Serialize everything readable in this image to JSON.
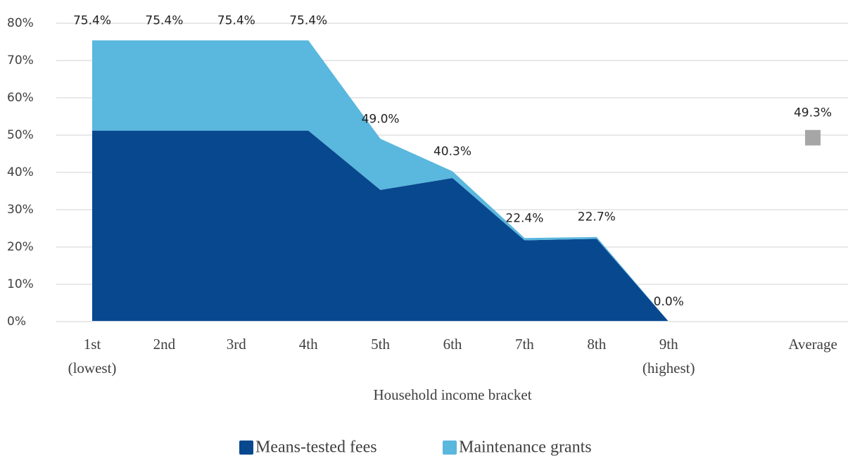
{
  "chart_data": {
    "type": "stacked_area",
    "x_label": "Household income bracket",
    "categories": [
      [
        "1st",
        "(lowest)"
      ],
      [
        "2nd"
      ],
      [
        "3rd"
      ],
      [
        "4th"
      ],
      [
        "5th"
      ],
      [
        "6th"
      ],
      [
        "7th"
      ],
      [
        "8th"
      ],
      [
        "9th",
        "(highest)"
      ],
      [
        "Average"
      ]
    ],
    "series": [
      {
        "name": "Means-tested fees",
        "color": "#08488f",
        "values": [
          51.2,
          51.2,
          51.2,
          51.2,
          35.3,
          38.5,
          21.8,
          22.2,
          0.0,
          null
        ]
      },
      {
        "name": "Maintenance grants",
        "color": "#5ab7dd",
        "values": [
          24.2,
          24.2,
          24.2,
          24.2,
          13.7,
          1.8,
          0.6,
          0.5,
          0.0,
          null
        ]
      }
    ],
    "totals": {
      "values": [
        75.4,
        75.4,
        75.4,
        75.4,
        49.0,
        40.3,
        22.4,
        22.7,
        0.0,
        null
      ],
      "value_labels": [
        "75.4%",
        "75.4%",
        "75.4%",
        "75.4%",
        "49.0%",
        "40.3%",
        "22.4%",
        "22.7%",
        "0.0%",
        null
      ]
    },
    "average": {
      "value": 49.3,
      "label": "49.3%",
      "color": "#a6a6a6"
    },
    "ylim": [
      0,
      80
    ],
    "yticks": [
      {
        "value": 0,
        "label": "0%"
      },
      {
        "value": 10,
        "label": "10%"
      },
      {
        "value": 20,
        "label": "20%"
      },
      {
        "value": 30,
        "label": "30%"
      },
      {
        "value": 40,
        "label": "40%"
      },
      {
        "value": 50,
        "label": "50%"
      },
      {
        "value": 60,
        "label": "60%"
      },
      {
        "value": 70,
        "label": "70%"
      },
      {
        "value": 80,
        "label": "80%"
      }
    ],
    "grid": true
  }
}
